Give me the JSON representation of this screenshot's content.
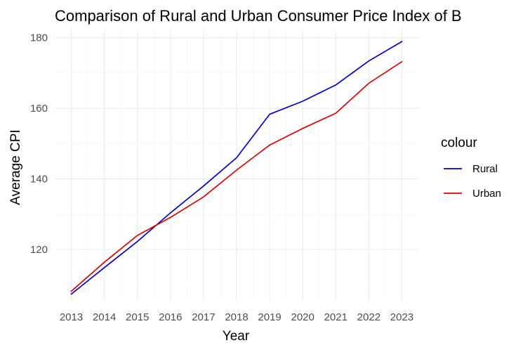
{
  "chart_data": {
    "type": "line",
    "title": "Comparison of Rural and Urban Consumer Price Index of B",
    "xlabel": "Year",
    "ylabel": "Average CPI",
    "x": [
      2013,
      2014,
      2015,
      2016,
      2017,
      2018,
      2019,
      2020,
      2021,
      2022,
      2023
    ],
    "x_ticks": [
      "2013",
      "2014",
      "2015",
      "2016",
      "2017",
      "2018",
      "2019",
      "2020",
      "2021",
      "2022",
      "2023"
    ],
    "y_ticks": [
      120,
      140,
      160,
      180
    ],
    "y_tick_labels": [
      "120",
      "140",
      "160",
      "180"
    ],
    "xlim": [
      2012.5,
      2023.5
    ],
    "ylim": [
      105.5,
      182.3
    ],
    "grid": true,
    "legend": {
      "title": "colour",
      "position": "right"
    },
    "series": [
      {
        "name": "Rural",
        "color": "#0000cd",
        "values": [
          107.4,
          114.9,
          122.3,
          130.4,
          138.0,
          146.0,
          158.3,
          162.0,
          166.6,
          173.4,
          178.9
        ]
      },
      {
        "name": "Urban",
        "color": "#e00000",
        "values": [
          108.2,
          116.4,
          124.0,
          129.1,
          134.9,
          142.5,
          149.6,
          154.3,
          158.6,
          167.1,
          173.2
        ]
      }
    ]
  }
}
